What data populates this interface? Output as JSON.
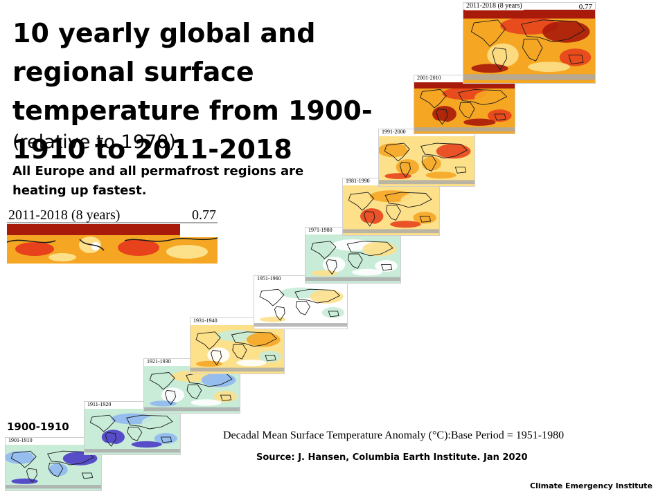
{
  "slide": {
    "title": "10 yearly global and regional surface temperature from 1900-1910 to 2011-2018",
    "subtitle": "(relative to 1970).",
    "note": "All Europe and all permafrost regions are heating up fastest.",
    "first_decade_label": "1900-1910",
    "figure_caption": "Decadal Mean Surface Temperature Anomaly (°C):Base Period = 1951-1980",
    "source": "Source: J. Hansen, Columbia Earth Institute. Jan 2020",
    "institute": "Climate Emergency Institute"
  },
  "zoom_inset": {
    "label": "2011-2018 (8 years)",
    "value": "0.77"
  },
  "colors": {
    "cold_deep": "#4a3cc8",
    "cold": "#8fb8f0",
    "cool": "#c8ecd8",
    "neutral": "#ffffff",
    "warm_light": "#fde08a",
    "warm": "#f5a623",
    "hot": "#e8421c",
    "very_hot": "#a81a0a",
    "polar_gray": "#a9a9a9"
  },
  "panels": [
    {
      "id": "p1901",
      "label": "1901-1910",
      "warmth": 0
    },
    {
      "id": "p1911",
      "label": "1911-1920",
      "warmth": 1
    },
    {
      "id": "p1921",
      "label": "1921-1930",
      "warmth": 2
    },
    {
      "id": "p1931",
      "label": "1931-1940",
      "warmth": 3
    },
    {
      "id": "p1951",
      "label": "1951-1960",
      "warmth": 4
    },
    {
      "id": "p1971",
      "label": "1971-1980",
      "warmth": 5
    },
    {
      "id": "p1981",
      "label": "1981-1990",
      "warmth": 6
    },
    {
      "id": "p1991",
      "label": "1991-2000",
      "warmth": 7
    },
    {
      "id": "p2001",
      "label": "2001-2010",
      "warmth": 8
    },
    {
      "id": "p2011",
      "label": "2011-2018 (8 years)",
      "warmth": 9,
      "value": "0.77"
    }
  ]
}
